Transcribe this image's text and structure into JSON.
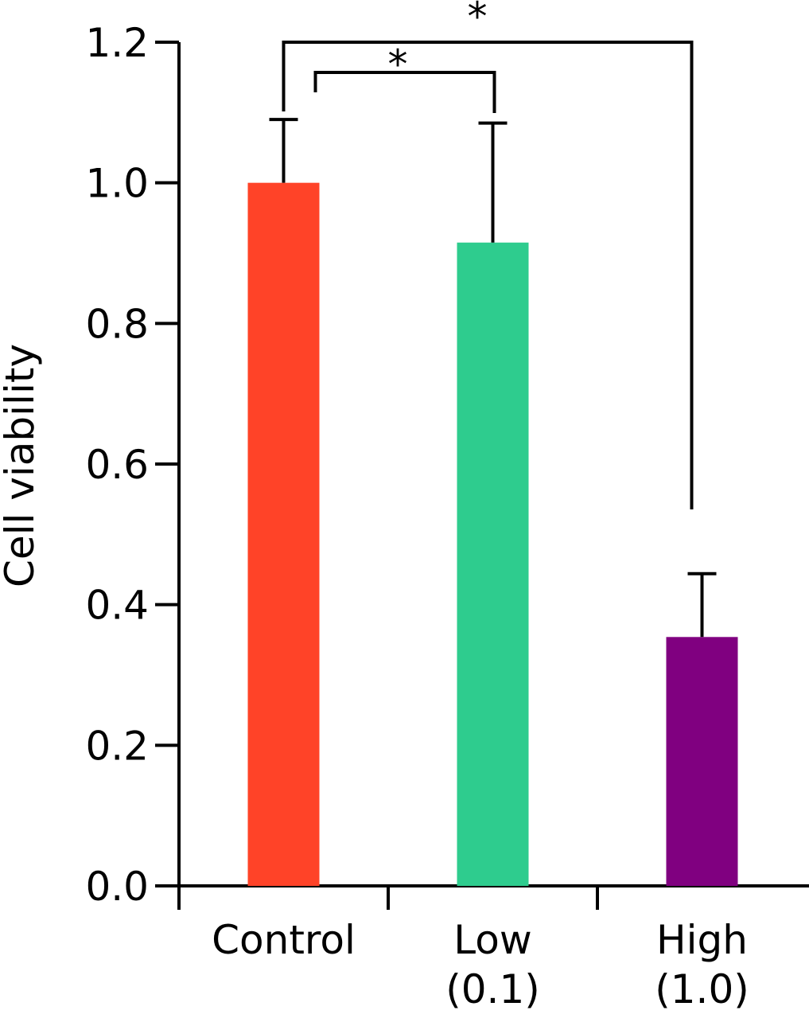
{
  "chart_data": {
    "type": "bar",
    "y_label": "Cell viability",
    "categories": [
      "Control",
      "Low\n(0.1)",
      "High\n(1.0)"
    ],
    "values": [
      1.0,
      0.915,
      0.354
    ],
    "errors": [
      0.09,
      0.17,
      0.09
    ],
    "colors": [
      "#ff4328",
      "#2ecc8e",
      "#800080"
    ],
    "ylim": [
      0,
      1.2
    ],
    "yticks": [
      {
        "value": 0,
        "label": "0.0"
      },
      0.2,
      0.4,
      0.6,
      0.8,
      {
        "value": 1,
        "label": "1.0"
      },
      1.2
    ],
    "significance": [
      {
        "label": "*"
      },
      {
        "label": "*"
      }
    ]
  }
}
